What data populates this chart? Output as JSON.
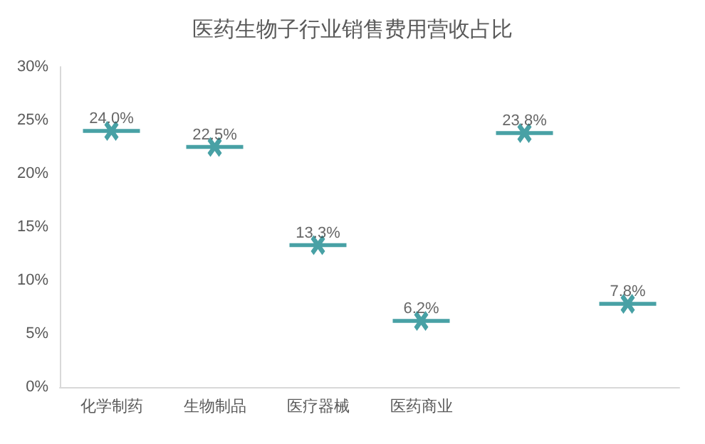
{
  "chart_data": {
    "type": "scatter",
    "title": "医药生物子行业销售费用营收占比",
    "categories": [
      "化学制药",
      "生物制品",
      "医疗器械",
      "医药商业",
      null,
      null
    ],
    "values": [
      24.0,
      22.5,
      13.3,
      6.2,
      23.8,
      7.8
    ],
    "value_labels": [
      "24.0%",
      "22.5%",
      "13.3%",
      "6.2%",
      "23.8%",
      "7.8%"
    ],
    "color": "#1a8a8e",
    "marker": "cross",
    "ylim": [
      0,
      30
    ],
    "yticks": [
      {
        "value": 0,
        "label": "0%"
      },
      {
        "value": 5,
        "label": "5%"
      },
      {
        "value": 10,
        "label": "10%"
      },
      {
        "value": 15,
        "label": "15%"
      },
      {
        "value": 20,
        "label": "20%"
      },
      {
        "value": 25,
        "label": "25%"
      },
      {
        "value": 30,
        "label": "30%"
      }
    ],
    "grid": false
  }
}
